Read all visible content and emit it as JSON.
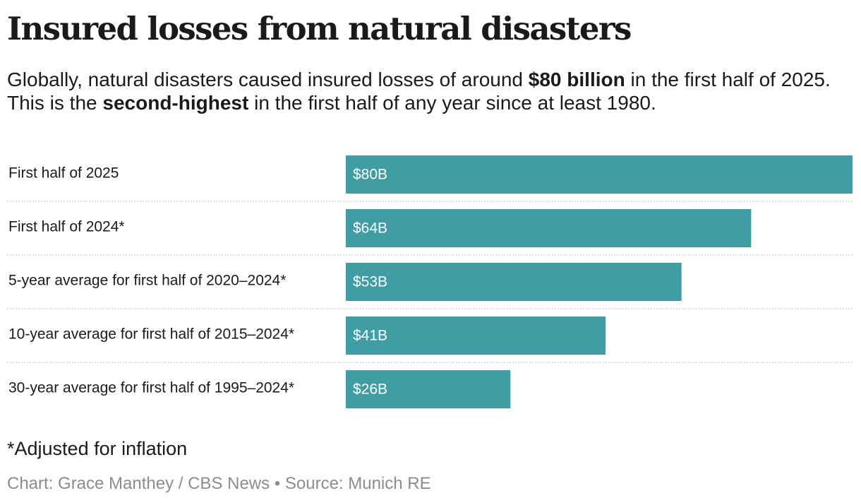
{
  "header": {
    "title": "Insured losses from natural disasters",
    "subtitle_parts": [
      "Globally, natural disasters caused insured losses of around ",
      "$80 billion",
      " in the first half of 2025. This is the ",
      "second-highest",
      " in the first half of any year since at least 1980."
    ]
  },
  "footer": {
    "footnote": "*Adjusted for inflation",
    "credits": "Chart: Grace Manthey / CBS News • Source: Munich RE"
  },
  "colors": {
    "bar": "#409da3",
    "separator": "#cfcfcf"
  },
  "chart_data": {
    "type": "bar",
    "orientation": "horizontal",
    "categories": [
      "First half of 2025",
      "First half of 2024*",
      "5-year average for first half of 2020–2024*",
      "10-year average for first half of 2015–2024*",
      "30-year average for first half of 1995–2024*"
    ],
    "values": [
      80,
      64,
      53,
      41,
      26
    ],
    "value_labels": [
      "$80B",
      "$64B",
      "$53B",
      "$41B",
      "$26B"
    ],
    "xlim": [
      0,
      80
    ],
    "grid": false,
    "legend": "none"
  }
}
